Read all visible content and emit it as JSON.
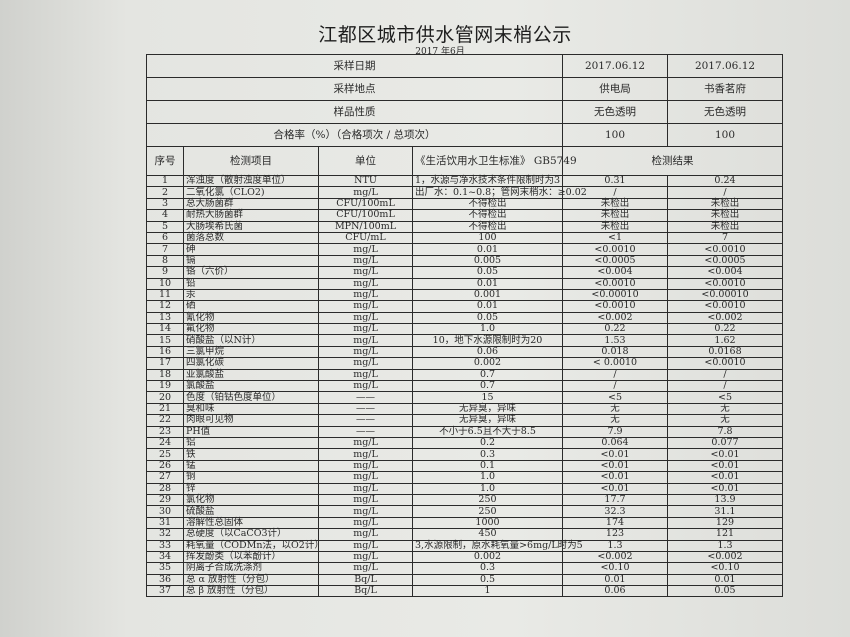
{
  "title": "江都区城市供水管网末梢公示",
  "subtitle": "2017 年6月",
  "meta": [
    {
      "label": "采样日期",
      "v1": "2017.06.12",
      "v2": "2017.06.12"
    },
    {
      "label": "采样地点",
      "v1": "供电局",
      "v2": "书香茗府"
    },
    {
      "label": "样品性质",
      "v1": "无色透明",
      "v2": "无色透明"
    },
    {
      "label": "合格率（%）（合格项次 / 总项次）",
      "v1": "100",
      "v2": "100"
    }
  ],
  "columns": {
    "no": "序号",
    "item": "检测项目",
    "unit": "单位",
    "standard": "《生活饮用水卫生标准》 GB5749",
    "results": "检测结果"
  },
  "rows": [
    [
      "1",
      "浑浊度（散射浊度单位）",
      "NTU",
      "1，水源与净水技术条件限制时为3",
      "0.31",
      "0.24"
    ],
    [
      "2",
      "二氧化氯（CLO2)",
      "mg/L",
      "出厂水：0.1~0.8；管网末梢水：≥0.02",
      "/",
      "/"
    ],
    [
      "3",
      "总大肠菌群",
      "CFU/100mL",
      "不得检出",
      "未检出",
      "未检出"
    ],
    [
      "4",
      "耐热大肠菌群",
      "CFU/100mL",
      "不得检出",
      "未检出",
      "未检出"
    ],
    [
      "5",
      "大肠埃希氏菌",
      "MPN/100mL",
      "不得检出",
      "未检出",
      "未检出"
    ],
    [
      "6",
      "菌落总数",
      "CFU/mL",
      "100",
      "<1",
      "7"
    ],
    [
      "7",
      "砷",
      "mg/L",
      "0.01",
      "<0.0010",
      "<0.0010"
    ],
    [
      "8",
      "镉",
      "mg/L",
      "0.005",
      "<0.0005",
      "<0.0005"
    ],
    [
      "9",
      "铬（六价）",
      "mg/L",
      "0.05",
      "<0.004",
      "<0.004"
    ],
    [
      "10",
      "铅",
      "mg/L",
      "0.01",
      "<0.0010",
      "<0.0010"
    ],
    [
      "11",
      "汞",
      "mg/L",
      "0.001",
      "<0.00010",
      "<0.00010"
    ],
    [
      "12",
      "硒",
      "mg/L",
      "0.01",
      "<0.0010",
      "<0.0010"
    ],
    [
      "13",
      "氰化物",
      "mg/L",
      "0.05",
      "<0.002",
      "<0.002"
    ],
    [
      "14",
      "氟化物",
      "mg/L",
      "1.0",
      "0.22",
      "0.22"
    ],
    [
      "15",
      "硝酸盐（以N计）",
      "mg/L",
      "10，地下水源限制时为20",
      "1.53",
      "1.62"
    ],
    [
      "16",
      "三氯甲烷",
      "mg/L",
      "0.06",
      "0.018",
      "0.0168"
    ],
    [
      "17",
      "四氯化碳",
      "mg/L",
      "0.002",
      "< 0.0010",
      "<0.0010"
    ],
    [
      "18",
      "亚氯酸盐",
      "mg/L",
      "0.7",
      "/",
      "/"
    ],
    [
      "19",
      "氯酸盐",
      "mg/L",
      "0.7",
      "/",
      "/"
    ],
    [
      "20",
      "色度（铂钴色度单位）",
      "——",
      "15",
      "<5",
      "<5"
    ],
    [
      "21",
      "臭和味",
      "——",
      "无异臭，异味",
      "无",
      "无"
    ],
    [
      "22",
      "肉眼可见物",
      "——",
      "无异臭，异味",
      "无",
      "无"
    ],
    [
      "23",
      "PH值",
      "——",
      "不小于6.5且不大于8.5",
      "7.9",
      "7.8"
    ],
    [
      "24",
      "铝",
      "mg/L",
      "0.2",
      "0.064",
      "0.077"
    ],
    [
      "25",
      "铁",
      "mg/L",
      "0.3",
      "<0.01",
      "<0.01"
    ],
    [
      "26",
      "锰",
      "mg/L",
      "0.1",
      "<0.01",
      "<0.01"
    ],
    [
      "27",
      "铜",
      "mg/L",
      "1.0",
      "<0.01",
      "<0.01"
    ],
    [
      "28",
      "锌",
      "mg/L",
      "1.0",
      "<0.01",
      "<0.01"
    ],
    [
      "29",
      "氯化物",
      "mg/L",
      "250",
      "17.7",
      "13.9"
    ],
    [
      "30",
      "硫酸盐",
      "mg/L",
      "250",
      "32.3",
      "31.1"
    ],
    [
      "31",
      "溶解性总固体",
      "mg/L",
      "1000",
      "174",
      "129"
    ],
    [
      "32",
      "总硬度（以CaCO3计）",
      "mg/L",
      "450",
      "123",
      "121"
    ],
    [
      "33",
      "耗氧量（CODMn法，以O2计）",
      "mg/L",
      "3,水源限制，原水耗氧量>6mg/L时为5",
      "1.3",
      "1.3"
    ],
    [
      "34",
      "挥发酚类（以苯酚计）",
      "mg/L",
      "0.002",
      "<0.002",
      "<0.002"
    ],
    [
      "35",
      "阴离子合成洗涤剂",
      "mg/L",
      "0.3",
      "<0.10",
      "<0.10"
    ],
    [
      "36",
      "总 α 放射性（分包）",
      "Bq/L",
      "0.5",
      "0.01",
      "0.01"
    ],
    [
      "37",
      "总 β 放射性（分包）",
      "Bq/L",
      "1",
      "0.06",
      "0.05"
    ]
  ]
}
